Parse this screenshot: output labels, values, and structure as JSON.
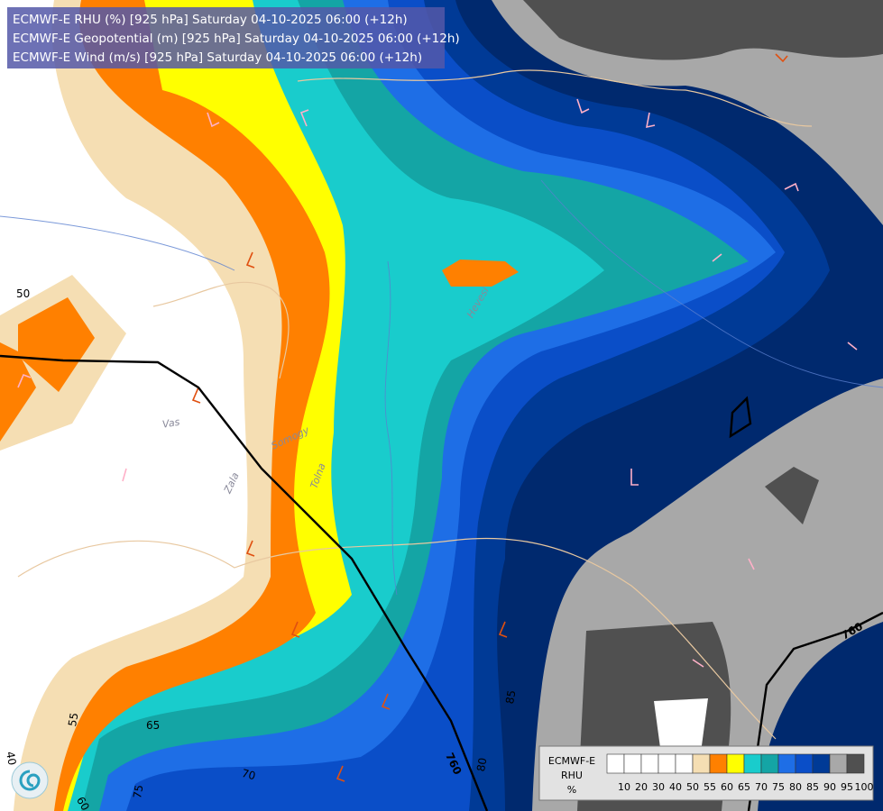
{
  "header": {
    "lines": [
      "ECMWF-E RHU (%) [925 hPa] Saturday 04-10-2025 06:00 (+12h)",
      "ECMWF-E Geopotential (m) [925 hPa] Saturday 04-10-2025 06:00 (+12h)",
      "ECMWF-E Wind (m/s) [925 hPa] Saturday 04-10-2025 06:00 (+12h)"
    ]
  },
  "contour_labels": [
    "50",
    "55",
    "65",
    "70",
    "75",
    "60",
    "40",
    "80",
    "85",
    "760",
    "760"
  ],
  "place_labels": [
    "Hevesi",
    "Vas",
    "Zala",
    "Tolna",
    "Somogy"
  ],
  "legend": {
    "title": "ECMWF-E",
    "variable": "RHU",
    "unit": "%",
    "colors": [
      "#ffffff",
      "#ffffff",
      "#ffffff",
      "#ffffff",
      "#ffffff",
      "#f5deb3",
      "#ff8000",
      "#ffff00",
      "#19cccc",
      "#14a5a5",
      "#1e6ee6",
      "#0a4ec8",
      "#003a96",
      "#a8a8a8",
      "#505050"
    ],
    "labels": [
      10,
      20,
      30,
      40,
      50,
      55,
      60,
      65,
      70,
      75,
      80,
      85,
      90,
      95,
      100
    ]
  }
}
